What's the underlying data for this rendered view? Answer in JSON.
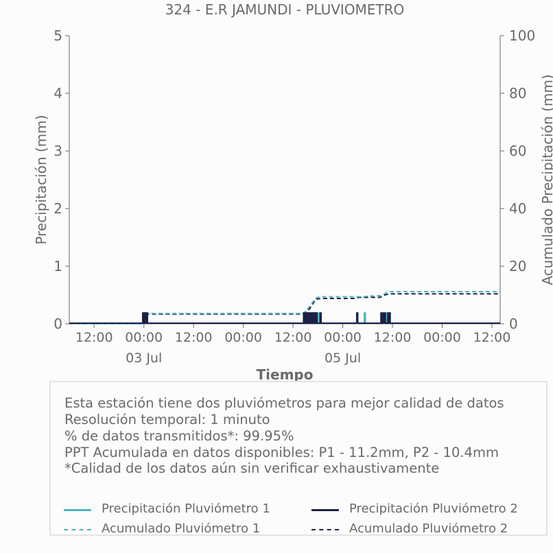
{
  "chart_data": {
    "type": "line",
    "title": "324 - E.R JAMUNDI - PLUVIOMETRO",
    "xlabel": "Tiempo",
    "ylabel": "Precipitación (mm)",
    "y2label": "Acumulado Precipitación (mm)",
    "xlim": [
      "2024-07-02 06:00",
      "2024-07-06 14:00"
    ],
    "ylim": [
      0,
      5
    ],
    "y2lim": [
      0,
      100
    ],
    "xticks": [
      {
        "t": "2024-07-02 12:00",
        "label": "12:00",
        "sublabel": ""
      },
      {
        "t": "2024-07-03 00:00",
        "label": "00:00",
        "sublabel": "03 Jul"
      },
      {
        "t": "2024-07-03 12:00",
        "label": "12:00",
        "sublabel": ""
      },
      {
        "t": "2024-07-04 00:00",
        "label": "00:00",
        "sublabel": ""
      },
      {
        "t": "2024-07-04 12:00",
        "label": "12:00",
        "sublabel": ""
      },
      {
        "t": "2024-07-05 00:00",
        "label": "00:00",
        "sublabel": "05 Jul"
      },
      {
        "t": "2024-07-05 12:00",
        "label": "12:00",
        "sublabel": ""
      },
      {
        "t": "2024-07-06 00:00",
        "label": "00:00",
        "sublabel": ""
      },
      {
        "t": "2024-07-06 12:00",
        "label": "12:00",
        "sublabel": ""
      }
    ],
    "xtick_labels_shown": [
      "12:00",
      "00:00",
      "12:00",
      "00:00",
      "12:00"
    ],
    "yticks": [
      0,
      1,
      2,
      3,
      4,
      5
    ],
    "y2ticks": [
      0,
      20,
      40,
      60,
      80,
      100
    ],
    "grid": false,
    "series": [
      {
        "name": "Precipitación Pluviómetro 1",
        "axis": "left",
        "style": "solid",
        "color": "#4fb3bf",
        "points": [
          [
            "2024-07-03 00:00",
            0.2
          ],
          [
            "2024-07-03 00:30",
            0.2
          ],
          [
            "2024-07-04 15:10",
            0.2
          ],
          [
            "2024-07-04 15:30",
            0.2
          ],
          [
            "2024-07-04 16:00",
            0.2
          ],
          [
            "2024-07-04 16:30",
            0.2
          ],
          [
            "2024-07-04 17:00",
            0.2
          ],
          [
            "2024-07-04 17:30",
            0.2
          ],
          [
            "2024-07-04 18:10",
            0.2
          ],
          [
            "2024-07-05 05:20",
            0.2
          ],
          [
            "2024-07-05 10:00",
            0.2
          ],
          [
            "2024-07-05 10:30",
            0.2
          ],
          [
            "2024-07-05 11:00",
            0.2
          ]
        ]
      },
      {
        "name": "Precipitación Pluviómetro 2",
        "axis": "left",
        "style": "solid",
        "color": "#1c2146",
        "points": [
          [
            "2024-07-02 23:50",
            0.2
          ],
          [
            "2024-07-03 00:10",
            0.2
          ],
          [
            "2024-07-03 00:30",
            0.2
          ],
          [
            "2024-07-03 00:45",
            0.2
          ],
          [
            "2024-07-04 14:40",
            0.2
          ],
          [
            "2024-07-04 15:00",
            0.2
          ],
          [
            "2024-07-04 15:20",
            0.2
          ],
          [
            "2024-07-04 15:40",
            0.2
          ],
          [
            "2024-07-04 16:00",
            0.2
          ],
          [
            "2024-07-04 16:20",
            0.2
          ],
          [
            "2024-07-04 16:40",
            0.2
          ],
          [
            "2024-07-04 17:00",
            0.2
          ],
          [
            "2024-07-04 17:20",
            0.2
          ],
          [
            "2024-07-04 17:40",
            0.2
          ],
          [
            "2024-07-04 18:40",
            0.2
          ],
          [
            "2024-07-05 03:30",
            0.2
          ],
          [
            "2024-07-05 09:20",
            0.2
          ],
          [
            "2024-07-05 09:40",
            0.2
          ],
          [
            "2024-07-05 10:10",
            0.2
          ],
          [
            "2024-07-05 11:00",
            0.2
          ],
          [
            "2024-07-05 11:20",
            0.2
          ]
        ]
      },
      {
        "name": "Acumulado Pluviómetro 1",
        "axis": "right",
        "style": "dashed",
        "color": "#4fb3bf",
        "points": [
          [
            "2024-07-02 06:00",
            0
          ],
          [
            "2024-07-02 23:45",
            0
          ],
          [
            "2024-07-03 00:15",
            2.0
          ],
          [
            "2024-07-03 00:45",
            3.6
          ],
          [
            "2024-07-04 14:30",
            3.6
          ],
          [
            "2024-07-04 16:00",
            6.0
          ],
          [
            "2024-07-04 17:30",
            9.0
          ],
          [
            "2024-07-04 18:30",
            9.4
          ],
          [
            "2024-07-05 05:00",
            9.4
          ],
          [
            "2024-07-05 05:45",
            9.6
          ],
          [
            "2024-07-05 09:30",
            9.8
          ],
          [
            "2024-07-05 10:30",
            10.8
          ],
          [
            "2024-07-05 11:30",
            11.2
          ],
          [
            "2024-07-06 14:00",
            11.2
          ]
        ]
      },
      {
        "name": "Acumulado Pluviómetro 2",
        "axis": "right",
        "style": "dashed",
        "color": "#1c2146",
        "points": [
          [
            "2024-07-02 06:00",
            0
          ],
          [
            "2024-07-02 23:45",
            0
          ],
          [
            "2024-07-03 00:15",
            2.0
          ],
          [
            "2024-07-03 00:45",
            3.4
          ],
          [
            "2024-07-04 14:30",
            3.4
          ],
          [
            "2024-07-04 16:00",
            5.2
          ],
          [
            "2024-07-04 17:30",
            8.6
          ],
          [
            "2024-07-04 19:00",
            8.8
          ],
          [
            "2024-07-05 03:00",
            8.8
          ],
          [
            "2024-07-05 04:00",
            9.2
          ],
          [
            "2024-07-05 09:00",
            9.2
          ],
          [
            "2024-07-05 10:30",
            10.2
          ],
          [
            "2024-07-05 11:30",
            10.4
          ],
          [
            "2024-07-06 14:00",
            10.4
          ]
        ]
      }
    ]
  },
  "info": {
    "lines": [
      "Esta estación tiene dos pluviómetros para mejor calidad de datos",
      "Resolución temporal: 1 minuto",
      "% de datos transmitidos*: 99.95%",
      "PPT Acumulada en datos disponibles: P1 - 11.2mm, P2 - 10.4mm",
      "*Calidad de los datos aún sin verificar exhaustivamente"
    ]
  },
  "legend": {
    "items": [
      {
        "label": "Precipitación Pluviómetro 1",
        "color": "#4fb3bf",
        "style": "solid"
      },
      {
        "label": "Precipitación Pluviómetro 2",
        "color": "#1c2146",
        "style": "solid"
      },
      {
        "label": "Acumulado Pluviómetro 1",
        "color": "#4fb3bf",
        "style": "dashed"
      },
      {
        "label": "Acumulado Pluviómetro 2",
        "color": "#1c2146",
        "style": "dashed"
      }
    ]
  }
}
